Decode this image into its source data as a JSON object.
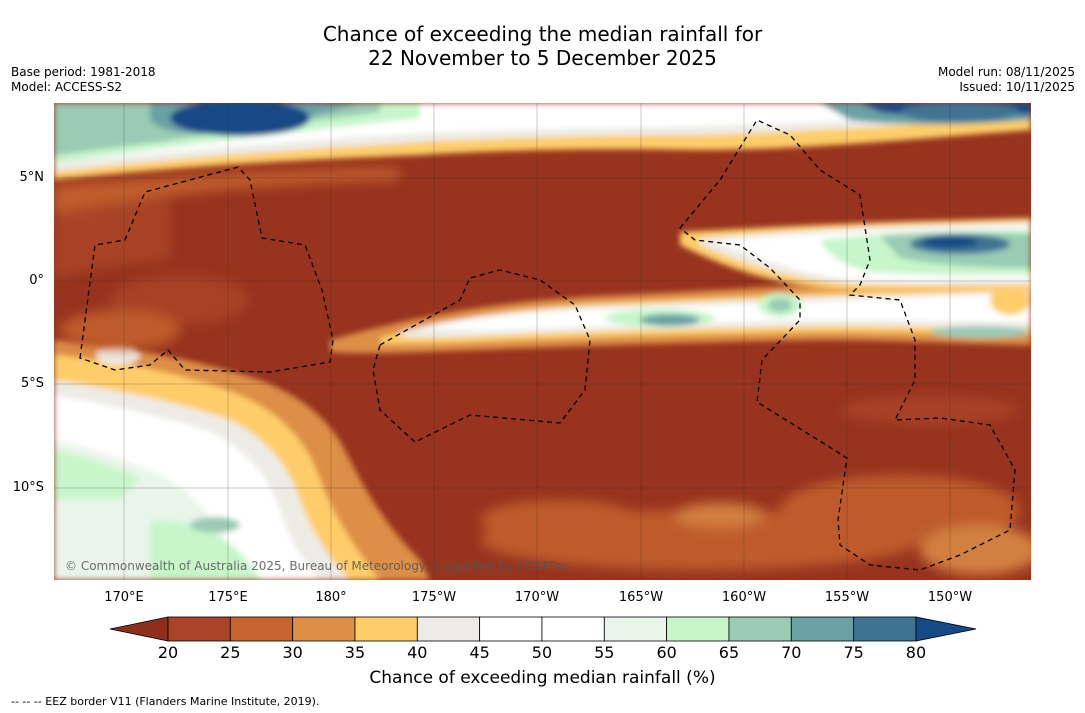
{
  "title": {
    "line1": "Chance of exceeding the median rainfall for",
    "line2": "22 November to 5 December 2025"
  },
  "meta_left": {
    "base_period": "Base period: 1981-2018",
    "model": "Model: ACCESS-S2"
  },
  "meta_right": {
    "model_run": "Model run: 08/11/2025",
    "issued": "Issued: 10/11/2025"
  },
  "lat_ticks": [
    "5°N",
    "0°",
    "5°S",
    "10°S"
  ],
  "lon_ticks": [
    "170°E",
    "175°E",
    "180°",
    "175°W",
    "170°W",
    "165°W",
    "160°W",
    "155°W",
    "150°W"
  ],
  "copyright": "© Commonwealth of Australia 2025, Bureau of Meteorology, supported by COSPPac",
  "colorbar": {
    "labels": [
      "20",
      "25",
      "30",
      "35",
      "40",
      "45",
      "50",
      "55",
      "60",
      "65",
      "70",
      "75",
      "80"
    ],
    "colors": [
      "#8e2f1c",
      "#ab4427",
      "#c6642f",
      "#dd8e47",
      "#fecd69",
      "#edebe6",
      "#ffffff",
      "#ffffff",
      "#e9f5e9",
      "#c7f6cb",
      "#9acbb4",
      "#6aa1a4",
      "#3f7394",
      "#144a86"
    ],
    "title": "Chance of exceeding median rainfall (%)"
  },
  "footer": "--  --  -- EEZ border V11 (Flanders Marine Institute, 2019)."
}
